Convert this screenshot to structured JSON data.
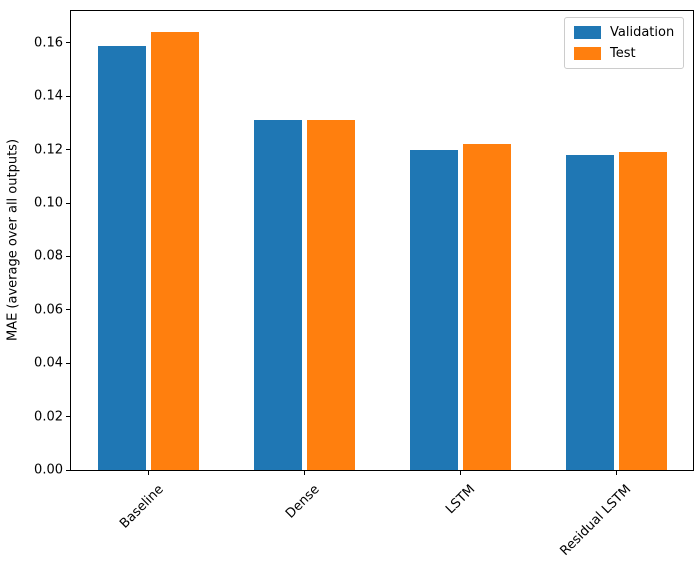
{
  "chart_data": {
    "type": "bar",
    "categories": [
      "Baseline",
      "Dense",
      "LSTM",
      "Residual LSTM"
    ],
    "series": [
      {
        "name": "Validation",
        "color": "#1f77b4",
        "values": [
          0.159,
          0.131,
          0.12,
          0.118
        ]
      },
      {
        "name": "Test",
        "color": "#ff7f0e",
        "values": [
          0.164,
          0.131,
          0.122,
          0.119
        ]
      }
    ],
    "title": "",
    "xlabel": "",
    "ylabel": "MAE (average over all outputs)",
    "ylim": [
      0,
      0.1723
    ],
    "yticks": [
      0.0,
      0.02,
      0.04,
      0.06,
      0.08,
      0.1,
      0.12,
      0.14,
      0.16
    ],
    "ytick_labels": [
      "0.00",
      "0.02",
      "0.04",
      "0.06",
      "0.08",
      "0.10",
      "0.12",
      "0.14",
      "0.16"
    ],
    "xtick_rotation": 45,
    "grid": false,
    "legend_position": "upper right"
  }
}
